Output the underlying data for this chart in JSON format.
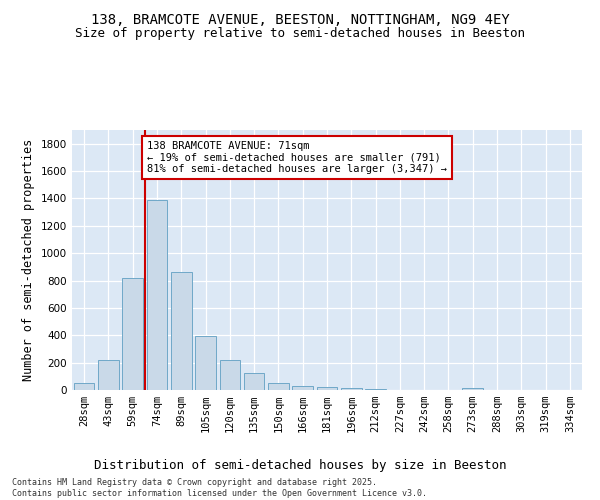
{
  "title_line1": "138, BRAMCOTE AVENUE, BEESTON, NOTTINGHAM, NG9 4EY",
  "title_line2": "Size of property relative to semi-detached houses in Beeston",
  "xlabel": "Distribution of semi-detached houses by size in Beeston",
  "ylabel": "Number of semi-detached properties",
  "categories": [
    "28sqm",
    "43sqm",
    "59sqm",
    "74sqm",
    "89sqm",
    "105sqm",
    "120sqm",
    "135sqm",
    "150sqm",
    "166sqm",
    "181sqm",
    "196sqm",
    "212sqm",
    "227sqm",
    "242sqm",
    "258sqm",
    "273sqm",
    "288sqm",
    "303sqm",
    "319sqm",
    "334sqm"
  ],
  "values": [
    50,
    220,
    820,
    1390,
    860,
    395,
    220,
    125,
    50,
    30,
    20,
    15,
    10,
    0,
    0,
    0,
    15,
    0,
    0,
    0,
    0
  ],
  "bar_color": "#c9d9e8",
  "bar_edgecolor": "#6fa8c8",
  "vline_x": 2.5,
  "vline_color": "#cc0000",
  "annotation_text": "138 BRAMCOTE AVENUE: 71sqm\n← 19% of semi-detached houses are smaller (791)\n81% of semi-detached houses are larger (3,347) →",
  "annotation_box_color": "#ffffff",
  "annotation_box_edgecolor": "#cc0000",
  "ylim": [
    0,
    1900
  ],
  "yticks": [
    0,
    200,
    400,
    600,
    800,
    1000,
    1200,
    1400,
    1600,
    1800
  ],
  "background_color": "#dce8f5",
  "footer_text": "Contains HM Land Registry data © Crown copyright and database right 2025.\nContains public sector information licensed under the Open Government Licence v3.0.",
  "title_fontsize": 10,
  "subtitle_fontsize": 9,
  "axis_label_fontsize": 8.5,
  "tick_fontsize": 7.5,
  "annotation_fontsize": 7.5
}
